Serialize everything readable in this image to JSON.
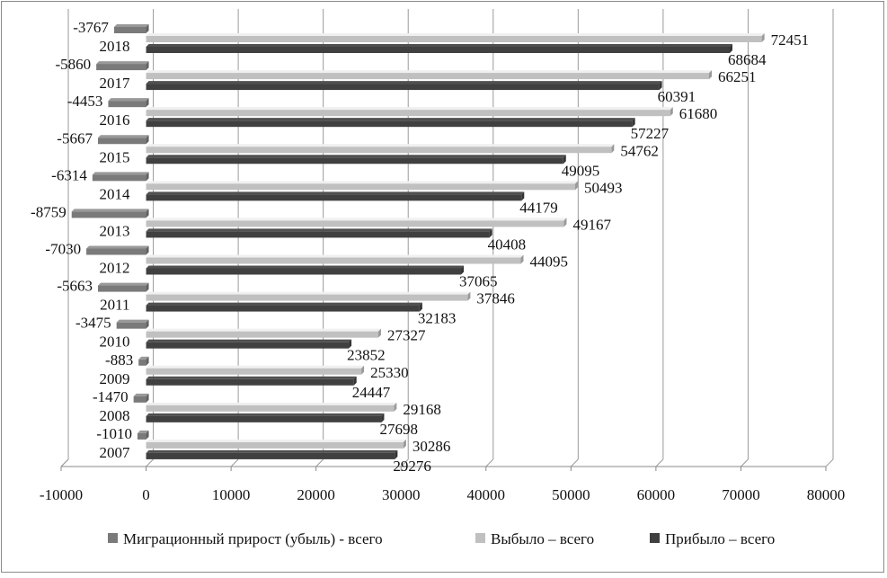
{
  "chart_data": {
    "type": "bar",
    "orientation": "horizontal",
    "categories": [
      "2018",
      "2017",
      "2016",
      "2015",
      "2014",
      "2013",
      "2012",
      "2011",
      "2010",
      "2009",
      "2008",
      "2007"
    ],
    "series": [
      {
        "name": "Миграционный прирост (убыль) - всего",
        "color": "#7a7a7a",
        "values": [
          -3767,
          -5860,
          -4453,
          -5667,
          -6314,
          -8759,
          -7030,
          -5663,
          -3475,
          -883,
          -1470,
          -1010
        ]
      },
      {
        "name": "Выбыло – всего",
        "color": "#c0c0c0",
        "values": [
          72451,
          66251,
          61680,
          54762,
          50493,
          49167,
          44095,
          37846,
          27327,
          25330,
          29168,
          30286
        ]
      },
      {
        "name": "Прибыло – всего",
        "color": "#404040",
        "values": [
          68684,
          60391,
          57227,
          49095,
          44179,
          40408,
          37065,
          32183,
          23852,
          24447,
          27698,
          29276
        ]
      }
    ],
    "xlim": [
      -10000,
      80000
    ],
    "xticks": [
      "-10000",
      "0",
      "10000",
      "20000",
      "30000",
      "40000",
      "50000",
      "60000",
      "70000",
      "80000"
    ],
    "grid": true,
    "legend": "bottom"
  }
}
